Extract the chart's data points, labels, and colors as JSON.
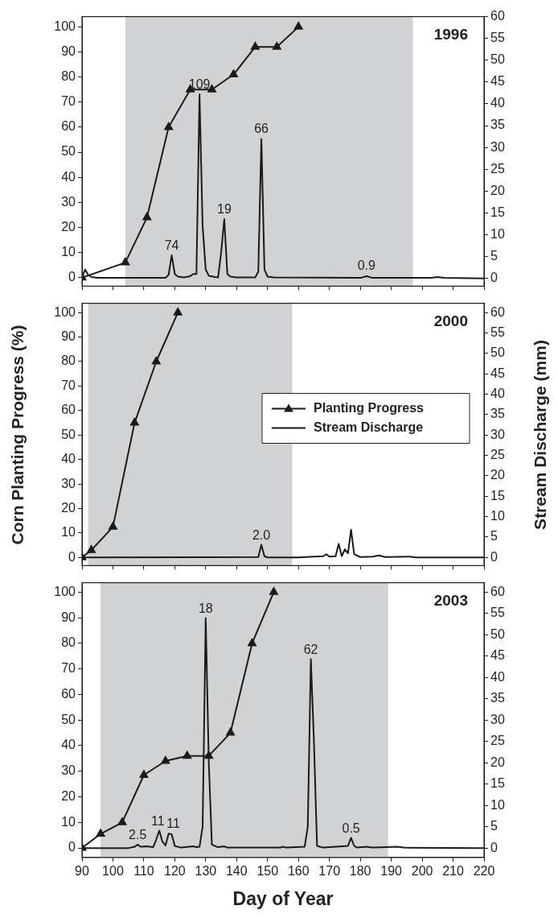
{
  "chart_data": [
    {
      "type": "line",
      "title": "1996",
      "xlim": [
        90,
        220
      ],
      "xticks": [
        90,
        100,
        110,
        120,
        130,
        140,
        150,
        160,
        170,
        180,
        190,
        200,
        210,
        220
      ],
      "ylim": [
        -3.4,
        104.1
      ],
      "yticks": [
        0,
        10,
        20,
        30,
        40,
        50,
        60,
        70,
        80,
        90,
        100
      ],
      "y2lim": [
        -1.8,
        60
      ],
      "y2ticks": [
        0,
        5,
        10,
        15,
        20,
        25,
        30,
        35,
        40,
        45,
        50,
        55,
        60
      ],
      "tick_labels": "y",
      "grid": false,
      "bands": [
        {
          "axis": "x",
          "from": 104,
          "to": 197,
          "color": "#d1d2d4"
        }
      ],
      "series": [
        {
          "color": "#1a1a1a",
          "marker": "triangle",
          "x": [
            90,
            104,
            111,
            118,
            125,
            132,
            139,
            146,
            153,
            160
          ],
          "values": [
            0,
            6,
            24,
            60,
            75,
            75,
            81,
            92,
            92,
            100
          ]
        },
        {
          "color": "#1a1a1a",
          "marker": "none",
          "axis": "y2",
          "x": [
            90,
            91,
            92,
            93,
            95,
            117,
            118,
            119,
            120,
            121,
            123,
            125,
            126,
            127,
            128,
            129,
            130,
            131,
            133,
            134,
            135,
            136,
            137,
            138,
            140,
            146,
            147,
            148,
            149,
            150,
            152,
            180,
            182,
            184,
            203,
            205,
            207,
            220
          ],
          "values": [
            0.3,
            2,
            0.8,
            0.3,
            0.1,
            0.1,
            0.8,
            5.3,
            1,
            0.4,
            0.2,
            0.5,
            1,
            1,
            42.2,
            12,
            2,
            0.6,
            0.3,
            0.2,
            6,
            13.6,
            1,
            0.4,
            0.2,
            0.2,
            1.5,
            31.9,
            2,
            0.4,
            0.2,
            0.1,
            0.5,
            0.1,
            0.1,
            0.3,
            0.1,
            0
          ]
        }
      ],
      "annotations": [
        {
          "text": "74",
          "x": 119,
          "y": 9.2
        },
        {
          "text": "109",
          "x": 128,
          "y": 73.4
        },
        {
          "text": "19",
          "x": 136,
          "y": 23.6
        },
        {
          "text": "66",
          "x": 148,
          "y": 55.5
        },
        {
          "text": "0.9",
          "x": 182,
          "y": 0.9
        }
      ]
    },
    {
      "type": "line",
      "title": "2000",
      "ylabel": "Corn Planting Progress (%)",
      "y2label": "Stream Discharge (mm)",
      "legend": "right",
      "xlim": [
        90,
        220
      ],
      "xticks": [
        90,
        100,
        110,
        120,
        130,
        140,
        150,
        160,
        170,
        180,
        190,
        200,
        210,
        220
      ],
      "ylim": [
        -3.3,
        103.8
      ],
      "yticks": [
        0,
        10,
        20,
        30,
        40,
        50,
        60,
        70,
        80,
        90,
        100
      ],
      "y2lim": [
        -2,
        62.3
      ],
      "y2ticks": [
        0,
        5,
        10,
        15,
        20,
        25,
        30,
        35,
        40,
        45,
        50,
        55,
        60
      ],
      "tick_labels": "y",
      "grid": false,
      "bands": [
        {
          "axis": "x",
          "from": 92,
          "to": 158,
          "color": "#d1d2d4"
        }
      ],
      "series": [
        {
          "name": "Planting Progress",
          "color": "#1a1a1a",
          "marker": "triangle",
          "x": [
            90,
            93,
            100,
            107,
            114,
            121
          ],
          "values": [
            0,
            3,
            12.5,
            55,
            80,
            100
          ]
        },
        {
          "name": "Stream Discharge",
          "color": "#1a1a1a",
          "marker": "none",
          "axis": "y2",
          "x": [
            90,
            147,
            148,
            149,
            150,
            160,
            165,
            168,
            169,
            170,
            172,
            173,
            174,
            175,
            176,
            177,
            178,
            180,
            184,
            186,
            188,
            196,
            198,
            220
          ],
          "values": [
            0,
            0.1,
            3.1,
            0.3,
            0,
            0,
            0.2,
            0.3,
            0.8,
            0.2,
            0.3,
            3.3,
            0.3,
            2,
            1,
            6.8,
            0.8,
            0.1,
            0.2,
            0.5,
            0.1,
            0.2,
            0,
            0
          ]
        }
      ],
      "annotations": [
        {
          "text": "2.0",
          "x": 148,
          "y": 5.2
        }
      ]
    },
    {
      "type": "line",
      "title": "2003",
      "xlabel": "Day of Year",
      "xlim": [
        90,
        220
      ],
      "xticks": [
        90,
        100,
        110,
        120,
        130,
        140,
        150,
        160,
        170,
        180,
        190,
        200,
        210,
        220
      ],
      "ylim": [
        -3.7,
        103.7
      ],
      "yticks": [
        0,
        10,
        20,
        30,
        40,
        50,
        60,
        70,
        80,
        90,
        100
      ],
      "y2lim": [
        -2.2,
        62.2
      ],
      "y2ticks": [
        0,
        5,
        10,
        15,
        20,
        25,
        30,
        35,
        40,
        45,
        50,
        55,
        60
      ],
      "grid": false,
      "bands": [
        {
          "axis": "x",
          "from": 96,
          "to": 189,
          "color": "#d1d2d4"
        }
      ],
      "series": [
        {
          "color": "#1a1a1a",
          "marker": "triangle",
          "x": [
            90,
            96,
            103,
            110,
            117,
            124,
            131,
            138,
            145,
            152
          ],
          "values": [
            0,
            5.5,
            10,
            28.5,
            34,
            36,
            36,
            45,
            80,
            100
          ]
        },
        {
          "color": "#1a1a1a",
          "marker": "none",
          "axis": "y2",
          "x": [
            90,
            105,
            107,
            108,
            109,
            111,
            113,
            114,
            115,
            116,
            117,
            118,
            119,
            120,
            122,
            126,
            127,
            128,
            129,
            130,
            131,
            132,
            134,
            136,
            137,
            154,
            155,
            156,
            162,
            163,
            164,
            165,
            166,
            168,
            176,
            177,
            178,
            179,
            182,
            184,
            192,
            194,
            220
          ],
          "values": [
            0,
            0,
            0.3,
            0.8,
            0.3,
            0.4,
            0.2,
            2,
            4.1,
            1.5,
            0.6,
            3.4,
            3.2,
            0.5,
            0.1,
            0.4,
            0.2,
            0.3,
            5,
            53.9,
            20,
            0.8,
            0.2,
            0.4,
            0.1,
            0.1,
            0.3,
            0.1,
            0.3,
            5,
            44.3,
            25,
            0.5,
            0.1,
            0.5,
            2.4,
            0.5,
            0.1,
            0.3,
            0.1,
            0.3,
            0.1,
            0
          ]
        }
      ],
      "annotations": [
        {
          "text": "2.5",
          "x": 108,
          "y": 1.3
        },
        {
          "text": "11",
          "x": 114.5,
          "y": 6.8
        },
        {
          "text": "11",
          "x": 119.5,
          "y": 5.7
        },
        {
          "text": "18",
          "x": 130,
          "y": 89.8
        },
        {
          "text": "62",
          "x": 164,
          "y": 73.8
        },
        {
          "text": "0.5",
          "x": 177,
          "y": 4
        }
      ]
    }
  ]
}
